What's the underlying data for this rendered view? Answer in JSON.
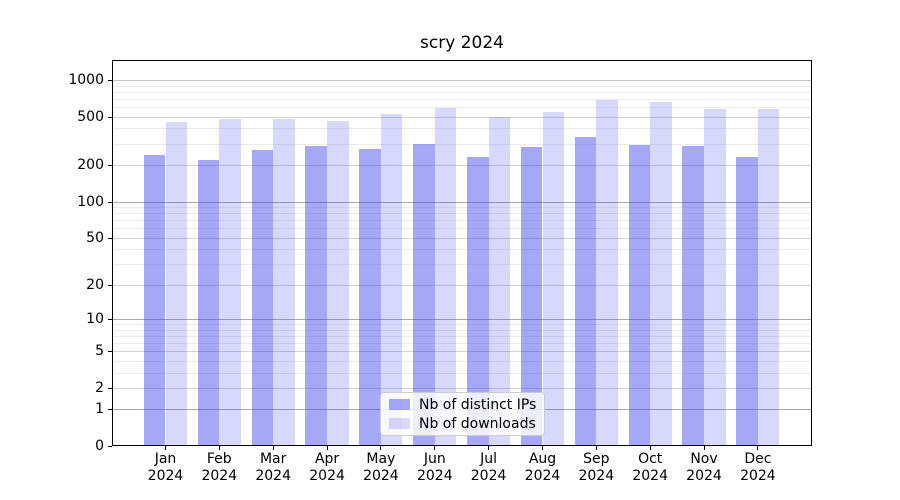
{
  "title": "scry 2024",
  "chart_data": {
    "type": "bar",
    "title": "scry 2024",
    "yscale": "symlog (log of 1+value, linear below 1)",
    "ylim": [
      0,
      1450
    ],
    "grid": true,
    "legend_position": "bottom-center-inside",
    "categories": [
      "Jan 2024",
      "Feb 2024",
      "Mar 2024",
      "Apr 2024",
      "May 2024",
      "Jun 2024",
      "Jul 2024",
      "Aug 2024",
      "Sep 2024",
      "Oct 2024",
      "Nov 2024",
      "Dec 2024"
    ],
    "yticks": [
      1000,
      500,
      200,
      100,
      50,
      20,
      10,
      5,
      2,
      1,
      0
    ],
    "series": [
      {
        "name": "Nb of distinct IPs",
        "color": "rgba(60,60,240,0.45)",
        "color_hex_on_white": "#a8a8f8",
        "values": [
          240,
          220,
          265,
          285,
          270,
          300,
          235,
          280,
          340,
          290,
          285,
          235
        ]
      },
      {
        "name": "Nb of downloads",
        "color": "rgba(60,60,240,0.20)",
        "color_hex_on_white": "#d9d9f8",
        "values": [
          455,
          480,
          480,
          460,
          525,
          585,
          495,
          545,
          690,
          660,
          580,
          575
        ]
      }
    ]
  },
  "axis_colors": {
    "spine": "#000000",
    "grid_decade": "#ababab",
    "grid_major": "#d4d4d4",
    "grid_minor": "#ececec"
  }
}
